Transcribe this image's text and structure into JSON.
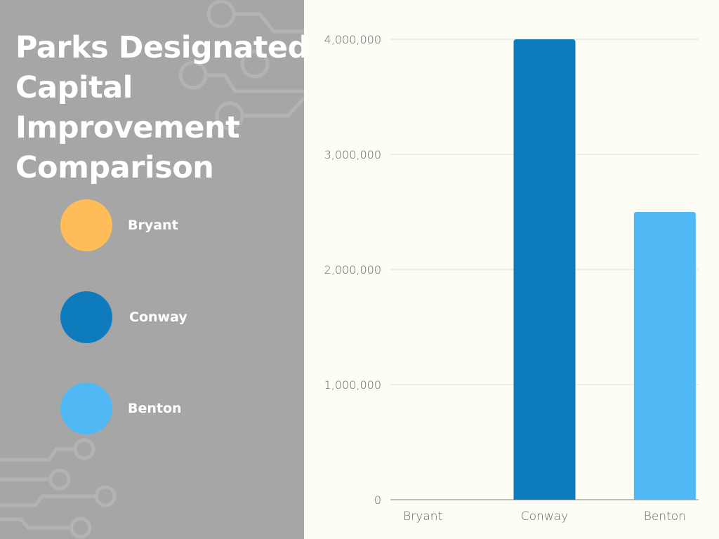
{
  "title": "Parks Designated\nCapital\nImprovement\nComparison",
  "legend": [
    {
      "label": "Bryant",
      "color": "#ffbd59"
    },
    {
      "label": "Conway",
      "color": "#0e7bbd"
    },
    {
      "label": "Benton",
      "color": "#50b8f5"
    }
  ],
  "chart_data": {
    "type": "bar",
    "title": "Parks Designated Capital Improvement Comparison",
    "categories": [
      "Bryant",
      "Conway",
      "Benton"
    ],
    "values": [
      0,
      4000000,
      2500000
    ],
    "colors": [
      "#ffbd59",
      "#0e7bbd",
      "#50b8f5"
    ],
    "ylim": [
      0,
      4000000
    ],
    "yticks": [
      0,
      1000000,
      2000000,
      3000000,
      4000000
    ],
    "ytick_labels": [
      "0",
      "1,000,000",
      "2,000,000",
      "3,000,000",
      "4,000,000"
    ],
    "grid": true,
    "xlabel": "",
    "ylabel": ""
  }
}
